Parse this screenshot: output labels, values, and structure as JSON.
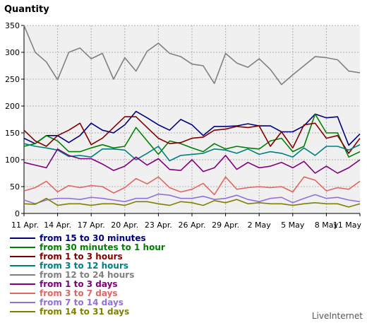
{
  "chart_data": {
    "type": "line",
    "ylabel": "Quantity",
    "ylim": [
      0,
      350
    ],
    "yticks": [
      0,
      50,
      100,
      150,
      200,
      250,
      300,
      350
    ],
    "grid": true,
    "legend_placement": "bottom-left",
    "x_tick_labels": [
      "11 Apr.",
      "14 Apr.",
      "17 Apr.",
      "20 Apr.",
      "23 Apr.",
      "26 Apr.",
      "29 Apr.",
      "2 May",
      "5 May",
      "8 May",
      "11 May"
    ],
    "x_tick_every": 3,
    "point_count": 31,
    "series": [
      {
        "name": "from 15 to 30 minutes",
        "color": "#000080",
        "values": [
          140,
          130,
          145,
          145,
          132,
          145,
          168,
          155,
          150,
          165,
          190,
          178,
          165,
          155,
          175,
          165,
          145,
          162,
          162,
          163,
          167,
          163,
          163,
          152,
          152,
          163,
          185,
          178,
          180,
          127,
          148
        ]
      },
      {
        "name": "from 30 minutes to 1 hour",
        "color": "#008000",
        "values": [
          125,
          130,
          145,
          135,
          115,
          115,
          122,
          128,
          122,
          125,
          160,
          135,
          110,
          135,
          130,
          122,
          115,
          130,
          120,
          125,
          122,
          120,
          135,
          140,
          115,
          125,
          185,
          150,
          150,
          105,
          115
        ]
      },
      {
        "name": "from 1 to 3 hours",
        "color": "#800000",
        "values": [
          155,
          135,
          125,
          145,
          155,
          168,
          128,
          140,
          160,
          180,
          180,
          160,
          140,
          130,
          132,
          140,
          142,
          155,
          157,
          162,
          160,
          163,
          125,
          152,
          122,
          165,
          168,
          140,
          145,
          112,
          140
        ]
      },
      {
        "name": "from 3 to 12 hours",
        "color": "#008080",
        "values": [
          130,
          125,
          122,
          118,
          106,
          108,
          105,
          120,
          120,
          118,
          100,
          112,
          125,
          98,
          108,
          110,
          112,
          120,
          118,
          112,
          120,
          110,
          115,
          112,
          105,
          122,
          108,
          125,
          125,
          118,
          128
        ]
      },
      {
        "name": "from 12 to 24 hours",
        "color": "#808080",
        "values": [
          350,
          300,
          282,
          249,
          300,
          308,
          288,
          298,
          250,
          290,
          265,
          302,
          317,
          298,
          292,
          278,
          275,
          242,
          298,
          280,
          272,
          288,
          268,
          240,
          258,
          275,
          292,
          290,
          286,
          265,
          262
        ]
      },
      {
        "name": "from 1 to 3 days",
        "color": "#800080",
        "values": [
          95,
          90,
          85,
          120,
          108,
          102,
          102,
          92,
          80,
          88,
          105,
          90,
          102,
          82,
          80,
          100,
          78,
          85,
          108,
          82,
          95,
          85,
          88,
          95,
          85,
          97,
          75,
          88,
          75,
          85,
          100
        ]
      },
      {
        "name": "from 3 to 7 days",
        "color": "#e06666",
        "values": [
          42,
          48,
          60,
          40,
          52,
          48,
          52,
          50,
          38,
          48,
          65,
          55,
          68,
          48,
          40,
          45,
          56,
          35,
          68,
          45,
          48,
          50,
          48,
          50,
          40,
          68,
          62,
          42,
          48,
          45,
          60
        ]
      },
      {
        "name": "from 7 to 14 days",
        "color": "#9370db",
        "values": [
          25,
          18,
          25,
          28,
          28,
          26,
          30,
          28,
          25,
          22,
          28,
          28,
          36,
          34,
          28,
          28,
          32,
          26,
          28,
          34,
          26,
          22,
          28,
          30,
          20,
          28,
          35,
          28,
          30,
          25,
          22
        ]
      },
      {
        "name": "from 14 to 31 days",
        "color": "#808000",
        "values": [
          18,
          17,
          28,
          15,
          18,
          18,
          15,
          18,
          18,
          15,
          22,
          22,
          18,
          15,
          22,
          20,
          15,
          24,
          20,
          26,
          18,
          20,
          18,
          18,
          15,
          18,
          20,
          18,
          18,
          12,
          18
        ]
      }
    ]
  },
  "watermark": "LiveInternet"
}
